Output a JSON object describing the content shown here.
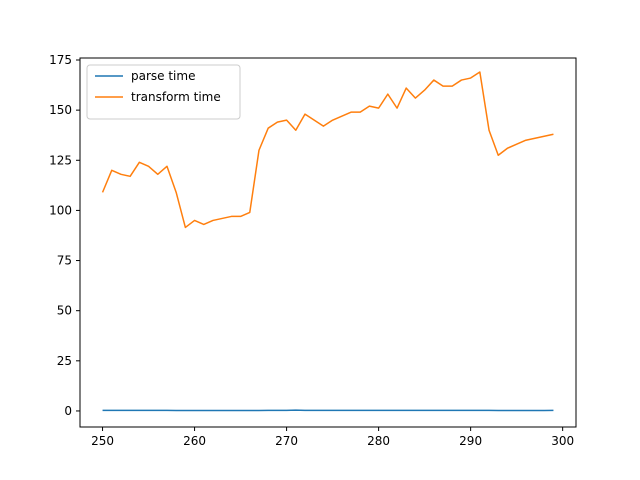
{
  "chart_data": {
    "type": "line",
    "title": "",
    "xlabel": "",
    "ylabel": "",
    "xlim": [
      247.55,
      301.45
    ],
    "ylim": [
      -8.0,
      176.0
    ],
    "xticks": [
      250,
      260,
      270,
      280,
      290,
      300
    ],
    "yticks": [
      0,
      25,
      50,
      75,
      100,
      125,
      150,
      175
    ],
    "grid": false,
    "legend_position": "top-left",
    "x": [
      250,
      251,
      252,
      253,
      254,
      255,
      256,
      257,
      258,
      259,
      260,
      261,
      262,
      263,
      264,
      265,
      266,
      267,
      268,
      269,
      270,
      271,
      272,
      273,
      274,
      275,
      276,
      277,
      278,
      279,
      280,
      281,
      282,
      283,
      284,
      285,
      286,
      287,
      288,
      289,
      290,
      291,
      292,
      293,
      294,
      295,
      296,
      297,
      298,
      299
    ],
    "series": [
      {
        "name": "parse time",
        "color": "#1f77b4",
        "values": [
          0.3,
          0.3,
          0.3,
          0.3,
          0.3,
          0.3,
          0.3,
          0.3,
          0.2,
          0.2,
          0.2,
          0.2,
          0.2,
          0.2,
          0.2,
          0.2,
          0.2,
          0.2,
          0.3,
          0.3,
          0.3,
          0.4,
          0.3,
          0.3,
          0.3,
          0.3,
          0.3,
          0.3,
          0.3,
          0.3,
          0.3,
          0.3,
          0.3,
          0.3,
          0.3,
          0.3,
          0.3,
          0.3,
          0.3,
          0.3,
          0.3,
          0.3,
          0.3,
          0.2,
          0.2,
          0.2,
          0.2,
          0.2,
          0.2,
          0.3
        ]
      },
      {
        "name": "transform time",
        "color": "#ff7f0e",
        "values": [
          109,
          120,
          118,
          117,
          124,
          122,
          118,
          122,
          109,
          91.5,
          95,
          93,
          95,
          96,
          97,
          97,
          99,
          130,
          141,
          144,
          145,
          140,
          148,
          145,
          142,
          145,
          147,
          149,
          149,
          152,
          151,
          158,
          151,
          161,
          156,
          160,
          165,
          162,
          162,
          165,
          166,
          169,
          140,
          127.5,
          131,
          133,
          135,
          136,
          137,
          138
        ]
      }
    ]
  }
}
